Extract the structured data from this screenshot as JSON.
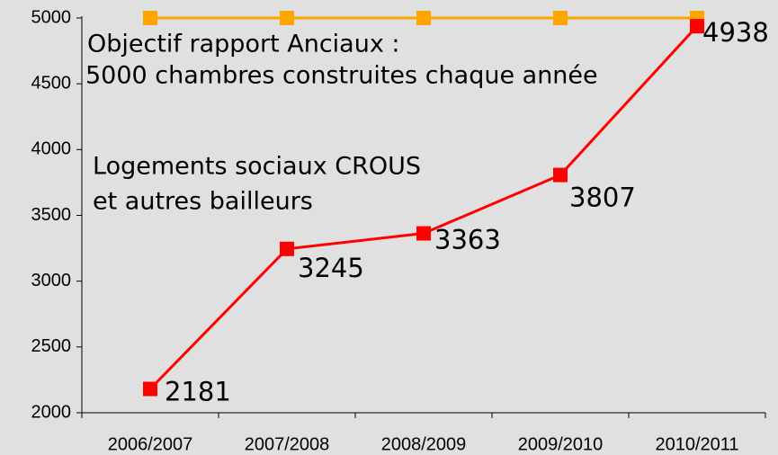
{
  "chart_data": {
    "type": "line",
    "categories": [
      "2006/2007",
      "2007/2008",
      "2008/2009",
      "2009/2010",
      "2010/2011"
    ],
    "series": [
      {
        "color": "#ffa500",
        "values": [
          5000,
          5000,
          5000,
          5000,
          5000
        ]
      },
      {
        "color": "#ff0000",
        "values": [
          2181,
          3245,
          3363,
          3807,
          4938
        ]
      }
    ],
    "ylim": [
      2000,
      5000
    ],
    "yticks": [
      2000,
      2500,
      3000,
      3500,
      4000,
      4500,
      5000
    ],
    "data_labels_series": 1,
    "annotations": [
      [
        "Objectif rapport Anciaux :",
        "5000 chambres construites chaque année"
      ],
      [
        "Logements sociaux CROUS",
        "et autres bailleurs"
      ]
    ]
  }
}
